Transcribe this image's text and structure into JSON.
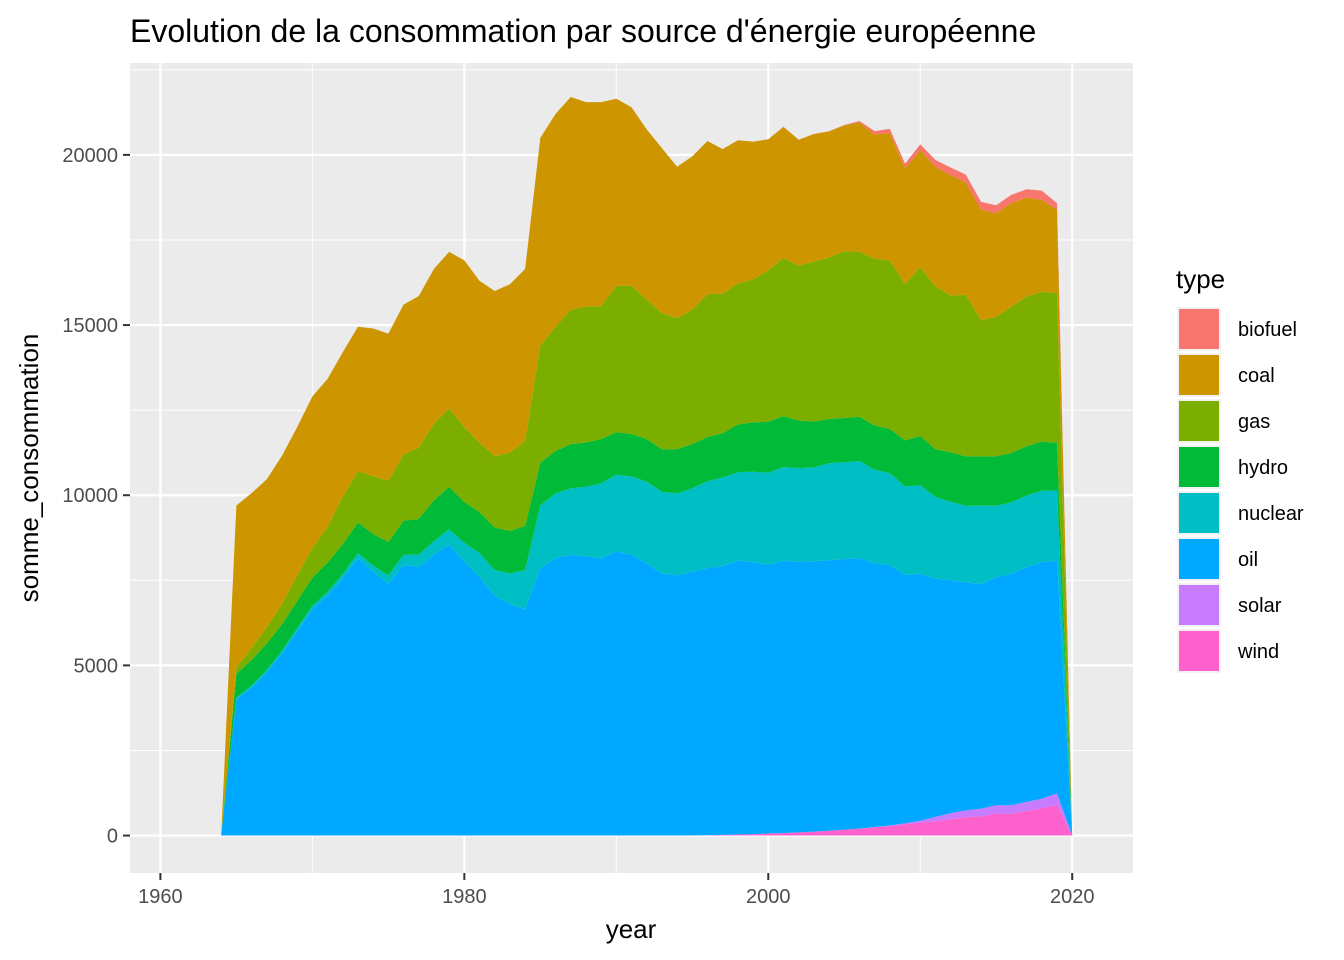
{
  "chart_data": {
    "type": "area",
    "stacked": true,
    "title": "Evolution de la consommation par source d'énergie européenne",
    "xlabel": "year",
    "ylabel": "somme_consommation",
    "xlim": [
      1958,
      2024
    ],
    "ylim": [
      -1100,
      22700
    ],
    "x_ticks": [
      1960,
      1980,
      2000,
      2020
    ],
    "y_ticks": [
      0,
      5000,
      10000,
      15000,
      20000
    ],
    "grid": true,
    "background": "#ebebeb",
    "legend": {
      "title": "type",
      "position": "right"
    },
    "x": [
      1964,
      1965,
      1966,
      1967,
      1968,
      1969,
      1970,
      1971,
      1972,
      1973,
      1974,
      1975,
      1976,
      1977,
      1978,
      1979,
      1980,
      1981,
      1982,
      1983,
      1984,
      1985,
      1986,
      1987,
      1988,
      1989,
      1990,
      1991,
      1992,
      1993,
      1994,
      1995,
      1996,
      1997,
      1998,
      1999,
      2000,
      2001,
      2002,
      2003,
      2004,
      2005,
      2006,
      2007,
      2008,
      2009,
      2010,
      2011,
      2012,
      2013,
      2014,
      2015,
      2016,
      2017,
      2018,
      2019,
      2020
    ],
    "series": [
      {
        "name": "wind",
        "color": "#FF61CC",
        "values": [
          0,
          0,
          0,
          0,
          0,
          0,
          0,
          0,
          0,
          0,
          0,
          0,
          0,
          0,
          0,
          0,
          0,
          0,
          0,
          0,
          0,
          0,
          0,
          0,
          0,
          0,
          0,
          0,
          0,
          0,
          0,
          5,
          10,
          20,
          30,
          40,
          60,
          75,
          95,
          115,
          140,
          170,
          200,
          240,
          280,
          330,
          380,
          420,
          480,
          540,
          560,
          650,
          640,
          720,
          800,
          900,
          0
        ]
      },
      {
        "name": "solar",
        "color": "#C77CFF",
        "values": [
          0,
          0,
          0,
          0,
          0,
          0,
          0,
          0,
          0,
          0,
          0,
          0,
          0,
          0,
          0,
          0,
          0,
          0,
          0,
          0,
          0,
          0,
          0,
          0,
          0,
          0,
          0,
          0,
          0,
          0,
          0,
          0,
          0,
          0,
          0,
          0,
          0,
          0,
          0,
          0,
          0,
          0,
          5,
          10,
          15,
          30,
          60,
          130,
          180,
          200,
          230,
          240,
          250,
          270,
          280,
          340,
          0
        ]
      },
      {
        "name": "oil",
        "color": "#00A9FF",
        "values": [
          0,
          4000,
          4350,
          4800,
          5350,
          6000,
          6650,
          7050,
          7550,
          8150,
          7750,
          7400,
          7950,
          7900,
          8250,
          8550,
          8050,
          7600,
          7050,
          6800,
          6650,
          7850,
          8150,
          8250,
          8200,
          8150,
          8350,
          8250,
          8000,
          7700,
          7650,
          7750,
          7850,
          7900,
          8050,
          8000,
          7900,
          8000,
          7950,
          7950,
          7950,
          7950,
          7950,
          7750,
          7650,
          7300,
          7250,
          7000,
          6850,
          6700,
          6600,
          6700,
          6800,
          6900,
          6950,
          6850,
          0
        ]
      },
      {
        "name": "nuclear",
        "color": "#00BFC4",
        "values": [
          0,
          50,
          60,
          70,
          80,
          90,
          100,
          110,
          130,
          150,
          180,
          250,
          300,
          350,
          400,
          450,
          550,
          700,
          750,
          900,
          1150,
          1850,
          1900,
          1950,
          2050,
          2200,
          2250,
          2300,
          2400,
          2400,
          2400,
          2450,
          2550,
          2600,
          2600,
          2650,
          2700,
          2750,
          2750,
          2750,
          2850,
          2850,
          2850,
          2750,
          2700,
          2600,
          2600,
          2400,
          2300,
          2250,
          2300,
          2100,
          2100,
          2100,
          2100,
          2050,
          0
        ]
      },
      {
        "name": "hydro",
        "color": "#00BA38",
        "values": [
          0,
          700,
          750,
          770,
          780,
          800,
          830,
          860,
          880,
          900,
          930,
          980,
          1000,
          1050,
          1200,
          1250,
          1200,
          1200,
          1250,
          1250,
          1300,
          1250,
          1250,
          1300,
          1300,
          1300,
          1250,
          1250,
          1250,
          1250,
          1300,
          1300,
          1300,
          1300,
          1400,
          1450,
          1500,
          1500,
          1400,
          1350,
          1300,
          1300,
          1300,
          1300,
          1300,
          1350,
          1450,
          1400,
          1450,
          1450,
          1450,
          1450,
          1450,
          1450,
          1450,
          1400,
          0
        ]
      },
      {
        "name": "gas",
        "color": "#7CAE00",
        "values": [
          0,
          200,
          350,
          480,
          600,
          750,
          870,
          1050,
          1400,
          1500,
          1700,
          1800,
          1950,
          2100,
          2250,
          2300,
          2200,
          2050,
          2100,
          2300,
          2500,
          3450,
          3650,
          3950,
          4000,
          3900,
          4300,
          4350,
          4100,
          4000,
          3850,
          3950,
          4200,
          4100,
          4150,
          4200,
          4450,
          4650,
          4550,
          4700,
          4750,
          4900,
          4850,
          4900,
          4950,
          4600,
          4950,
          4800,
          4600,
          4750,
          4000,
          4100,
          4300,
          4400,
          4400,
          4400,
          0
        ]
      },
      {
        "name": "coal",
        "color": "#CD9600",
        "values": [
          0,
          4750,
          4550,
          4350,
          4350,
          4360,
          4450,
          4350,
          4240,
          4250,
          4340,
          4320,
          4400,
          4450,
          4550,
          4600,
          4900,
          4750,
          4850,
          4950,
          5050,
          6100,
          6250,
          6250,
          6000,
          6000,
          5500,
          5250,
          5000,
          4850,
          4450,
          4500,
          4500,
          4250,
          4200,
          4050,
          3850,
          3850,
          3700,
          3750,
          3700,
          3700,
          3800,
          3650,
          3750,
          3400,
          3450,
          3500,
          3550,
          3300,
          3250,
          3050,
          3050,
          2900,
          2700,
          2450,
          0
        ]
      },
      {
        "name": "biofuel",
        "color": "#F8766D",
        "values": [
          0,
          0,
          0,
          0,
          0,
          0,
          0,
          0,
          0,
          0,
          0,
          0,
          0,
          0,
          0,
          0,
          0,
          0,
          0,
          0,
          0,
          0,
          0,
          0,
          0,
          0,
          0,
          0,
          0,
          0,
          0,
          0,
          0,
          0,
          0,
          0,
          0,
          0,
          0,
          0,
          5,
          10,
          40,
          100,
          120,
          130,
          170,
          200,
          220,
          230,
          230,
          230,
          240,
          250,
          270,
          190,
          0
        ]
      }
    ],
    "legend_order": [
      "biofuel",
      "coal",
      "gas",
      "hydro",
      "nuclear",
      "oil",
      "solar",
      "wind"
    ]
  }
}
